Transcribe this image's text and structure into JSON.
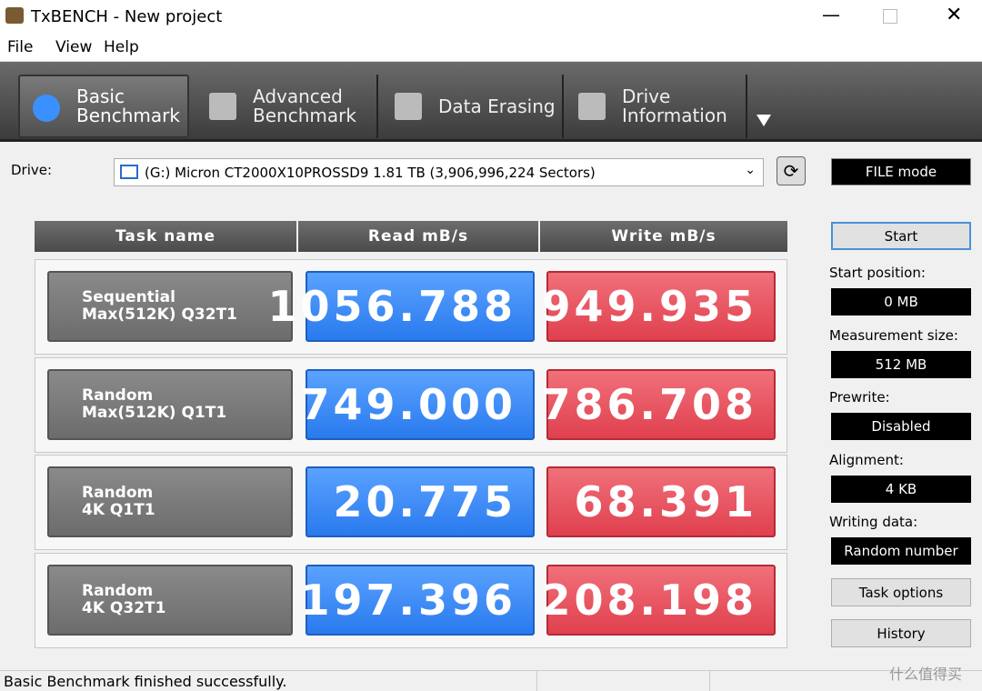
{
  "window": {
    "title": "TxBENCH - New project"
  },
  "menu": [
    "File",
    "View",
    "Help"
  ],
  "tabs": [
    [
      "Basic",
      "Benchmark"
    ],
    [
      "Advanced",
      "Benchmark"
    ],
    [
      "Data Erasing"
    ],
    [
      "Drive",
      "Information"
    ]
  ],
  "drive": {
    "label": "Drive:",
    "value": "(G:) Micron CT2000X10PROSSD9  1.81 TB (3,906,996,224 Sectors)"
  },
  "table": {
    "headers": [
      "Task name",
      "Read mB/s",
      "Write mB/s"
    ],
    "rows": [
      [
        [
          "Sequential",
          "Max(512K) Q32T1"
        ],
        "1056.788",
        "949.935"
      ],
      [
        [
          "Random",
          "Max(512K) Q1T1"
        ],
        "749.000",
        "786.708"
      ],
      [
        [
          "Random",
          "4K Q1T1"
        ],
        "20.775",
        "68.391"
      ],
      [
        [
          "Random",
          "4K Q32T1"
        ],
        "197.396",
        "208.198"
      ]
    ]
  },
  "side": {
    "mode": "FILE mode",
    "start": "Start",
    "fields": [
      {
        "label": "Start position:",
        "value": "0 MB"
      },
      {
        "label": "Measurement size:",
        "value": "512 MB"
      },
      {
        "label": "Prewrite:",
        "value": "Disabled"
      },
      {
        "label": "Alignment:",
        "value": "4 KB"
      },
      {
        "label": "Writing data:",
        "value": "Random number"
      }
    ],
    "buttons": [
      "Task options",
      "History"
    ]
  },
  "status": "Basic Benchmark finished successfully.",
  "watermark": "什么值得买"
}
